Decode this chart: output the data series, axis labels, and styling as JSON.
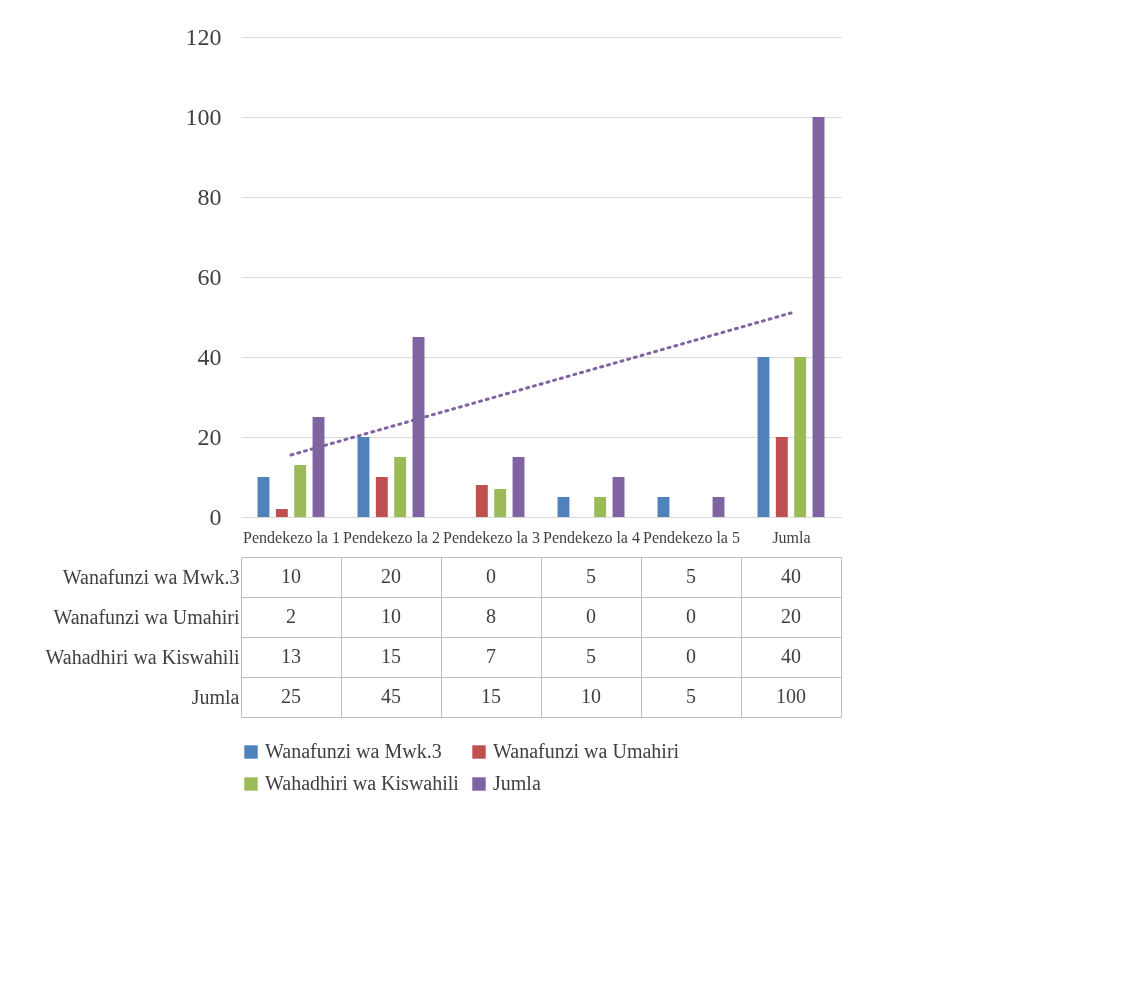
{
  "chart_data": {
    "type": "bar",
    "categories": [
      "Pendekezo la 1",
      "Pendekezo la 2",
      "Pendekezo la 3",
      "Pendekezo la 4",
      "Pendekezo la 5",
      "Jumla"
    ],
    "series": [
      {
        "name": "Wanafunzi wa Mwk.3",
        "color": "#4f81bd",
        "values": [
          10,
          20,
          0,
          5,
          5,
          40
        ],
        "value_labels": [
          "10",
          "20",
          "0",
          "5",
          "5",
          "40"
        ]
      },
      {
        "name": "Wanafunzi wa Umahiri",
        "color": "#c0504d",
        "values": [
          2,
          10,
          8,
          0,
          0,
          20
        ],
        "value_labels": [
          "2",
          "10",
          "8",
          "0",
          "0",
          "20"
        ]
      },
      {
        "name": "Wahadhiri wa Kiswahili",
        "color": "#9bbb59",
        "values": [
          13,
          15,
          7,
          5,
          0,
          40
        ],
        "value_labels": [
          "13",
          "15",
          "7",
          "5",
          "0",
          "40"
        ]
      },
      {
        "name": "Jumla",
        "color": "#8064a2",
        "values": [
          25,
          45,
          15,
          10,
          5,
          100
        ],
        "value_labels": [
          "25",
          "45",
          "15",
          "10",
          "5",
          "100"
        ]
      },
      {
        "type": "line",
        "color": "#8064a2",
        "line_style": "dotted",
        "marker": "none",
        "x": [
          "Pendekezo la 1",
          "Jumla"
        ],
        "values": [
          15.5,
          51
        ]
      }
    ],
    "ylim": [
      0,
      120
    ],
    "yticks": [
      0,
      20,
      40,
      60,
      80,
      100,
      120
    ],
    "grid": "y",
    "legend": "bottom"
  }
}
